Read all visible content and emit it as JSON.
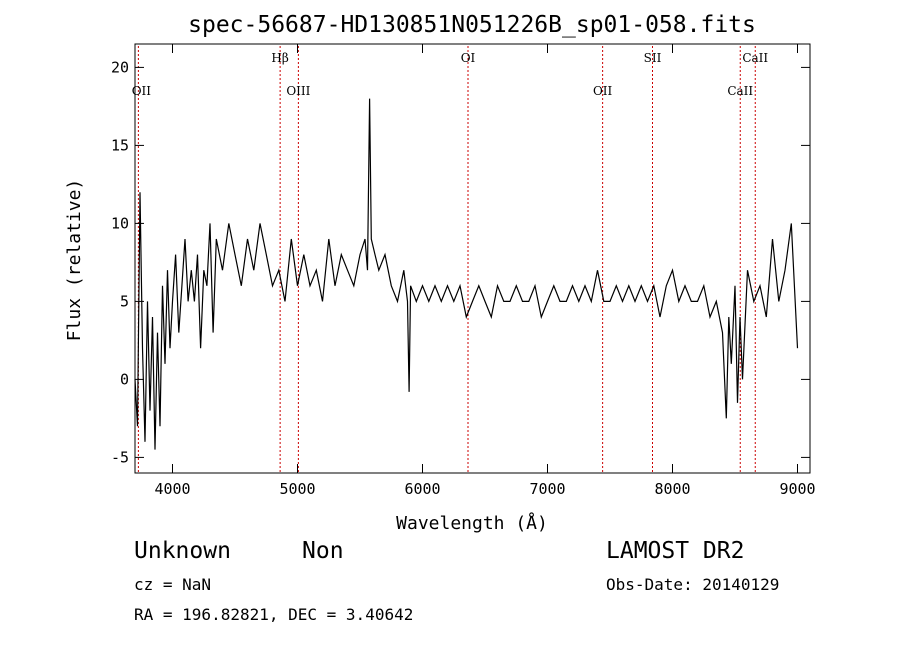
{
  "chart_data": {
    "type": "line",
    "title": "spec-56687-HD130851N051226B_sp01-058.fits",
    "xlabel": "Wavelength (Å)",
    "ylabel": "Flux (relative)",
    "xlim": [
      3700,
      9100
    ],
    "ylim": [
      -6,
      21.5
    ],
    "xticks": [
      4000,
      5000,
      6000,
      7000,
      8000,
      9000
    ],
    "yticks": [
      -5,
      0,
      5,
      10,
      15,
      20
    ],
    "grid": false,
    "line_color": "#000000",
    "marker_color": "#cc0000",
    "series": [
      {
        "x": [
          3700,
          3720,
          3740,
          3760,
          3780,
          3800,
          3820,
          3840,
          3860,
          3880,
          3900,
          3920,
          3940,
          3960,
          3980,
          4000,
          4025,
          4050,
          4075,
          4100,
          4125,
          4150,
          4175,
          4200,
          4225,
          4250,
          4275,
          4300,
          4325,
          4350,
          4400,
          4450,
          4500,
          4550,
          4600,
          4650,
          4700,
          4750,
          4800,
          4850,
          4900,
          4950,
          5000,
          5050,
          5100,
          5150,
          5200,
          5250,
          5300,
          5350,
          5400,
          5450,
          5500,
          5540,
          5560,
          5577,
          5590,
          5620,
          5650,
          5700,
          5750,
          5800,
          5850,
          5880,
          5893,
          5905,
          5950,
          6000,
          6050,
          6100,
          6150,
          6200,
          6250,
          6300,
          6350,
          6400,
          6450,
          6500,
          6550,
          6600,
          6650,
          6700,
          6750,
          6800,
          6850,
          6900,
          6950,
          7000,
          7050,
          7100,
          7150,
          7200,
          7250,
          7300,
          7350,
          7400,
          7450,
          7500,
          7550,
          7600,
          7650,
          7700,
          7750,
          7800,
          7850,
          7900,
          7950,
          8000,
          8050,
          8100,
          8150,
          8200,
          8250,
          8300,
          8350,
          8400,
          8430,
          8450,
          8470,
          8500,
          8520,
          8540,
          8560,
          8600,
          8650,
          8700,
          8750,
          8800,
          8850,
          8900,
          8950,
          9000
        ],
        "y": [
          0,
          -3,
          12,
          2,
          -4,
          5,
          -2,
          4,
          -4.5,
          3,
          -3,
          6,
          1,
          7,
          2,
          5,
          8,
          3,
          6,
          9,
          5,
          7,
          5,
          8,
          2,
          7,
          6,
          10,
          3,
          9,
          7,
          10,
          8,
          6,
          9,
          7,
          10,
          8,
          6,
          7,
          5,
          9,
          6,
          8,
          6,
          7,
          5,
          9,
          6,
          8,
          7,
          6,
          8,
          9,
          7,
          18,
          9,
          8,
          7,
          8,
          6,
          5,
          7,
          5,
          -0.8,
          6,
          5,
          6,
          5,
          6,
          5,
          6,
          5,
          6,
          4,
          5,
          6,
          5,
          4,
          6,
          5,
          5,
          6,
          5,
          5,
          6,
          4,
          5,
          6,
          5,
          5,
          6,
          5,
          6,
          5,
          7,
          5,
          5,
          6,
          5,
          6,
          5,
          6,
          5,
          6,
          4,
          6,
          7,
          5,
          6,
          5,
          5,
          6,
          4,
          5,
          3,
          -2.5,
          4,
          1,
          6,
          -1.5,
          4,
          0,
          7,
          5,
          6,
          4,
          9,
          5,
          7,
          10,
          2
        ]
      }
    ],
    "spectral_lines": [
      {
        "label": "OII",
        "wavelength": 3727
      },
      {
        "label": "Hβ",
        "wavelength": 4861
      },
      {
        "label": "OIII",
        "wavelength": 5007
      },
      {
        "label": "OI",
        "wavelength": 6364
      },
      {
        "label": "OII",
        "wavelength": 7441
      },
      {
        "label": "SII",
        "wavelength": 7840
      },
      {
        "label": "CaII",
        "wavelength": 8542
      },
      {
        "label": "CaII",
        "wavelength": 8662
      }
    ]
  },
  "info": {
    "class_label": "Unknown",
    "subclass_label": "Non",
    "survey": "LAMOST DR2",
    "cz": "cz = NaN",
    "obs_date": "Obs-Date: 20140129",
    "coords": "RA = 196.82821, DEC =    3.40642"
  }
}
